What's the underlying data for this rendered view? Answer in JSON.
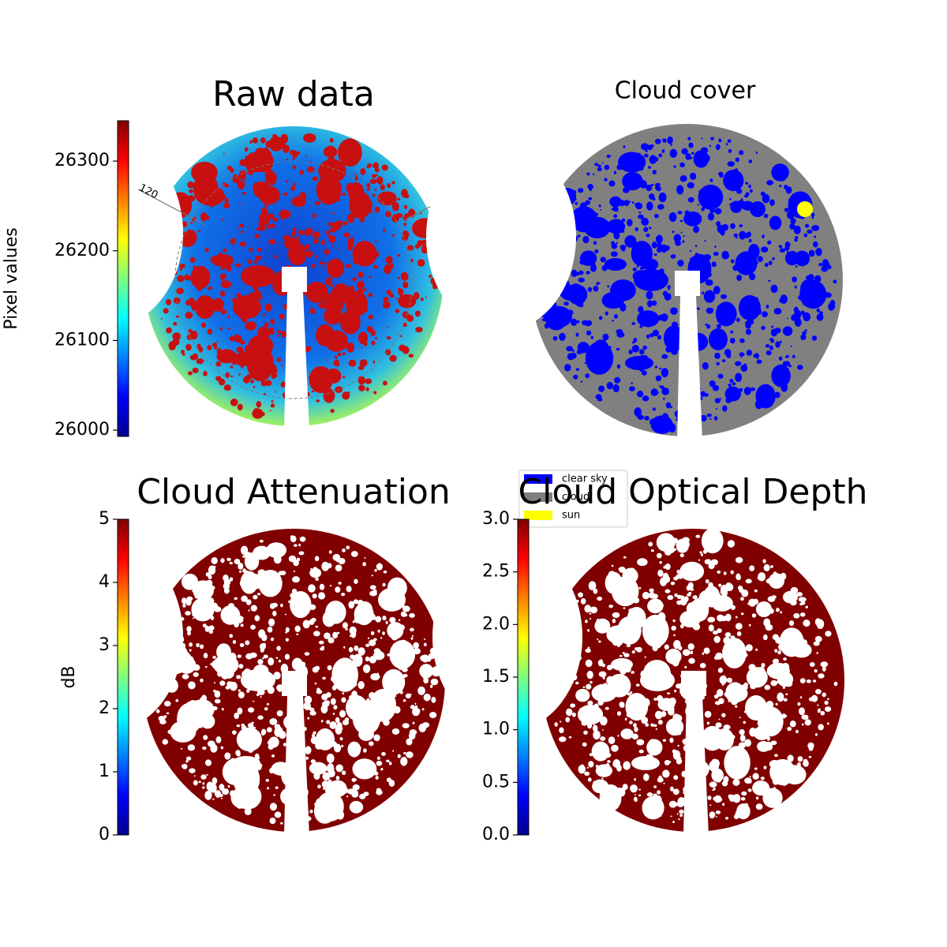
{
  "chart_data": [
    {
      "type": "heatmap",
      "title": "Raw data",
      "colormap": "jet",
      "colorbar": {
        "label": "Pixel values",
        "ylim": [
          25993,
          26345
        ],
        "yticks": [
          26000,
          26100,
          26200,
          26300
        ]
      },
      "annotations": [
        "120"
      ]
    },
    {
      "type": "mask",
      "title": "Cloud cover",
      "legend": [
        {
          "name": "clear sky",
          "color": "#0000ff"
        },
        {
          "name": "cloud",
          "color": "#808080"
        },
        {
          "name": "sun",
          "color": "#ffff00"
        }
      ]
    },
    {
      "type": "heatmap",
      "title": "Cloud Attenuation",
      "colormap": "jet",
      "colorbar": {
        "label": "dB",
        "ylim": [
          0,
          5
        ],
        "yticks": [
          0,
          1,
          2,
          3,
          4,
          5
        ]
      }
    },
    {
      "type": "heatmap",
      "title": "Cloud Optical Depth",
      "colormap": "jet",
      "colorbar": {
        "ylim": [
          0,
          3
        ],
        "yticks": [
          {
            "value": 0,
            "label": "0.0"
          },
          0.5,
          {
            "value": 1,
            "label": "1.0"
          },
          1.5,
          {
            "value": 2,
            "label": "2.0"
          },
          2.5,
          {
            "value": 3,
            "label": "3.0"
          }
        ]
      }
    }
  ]
}
